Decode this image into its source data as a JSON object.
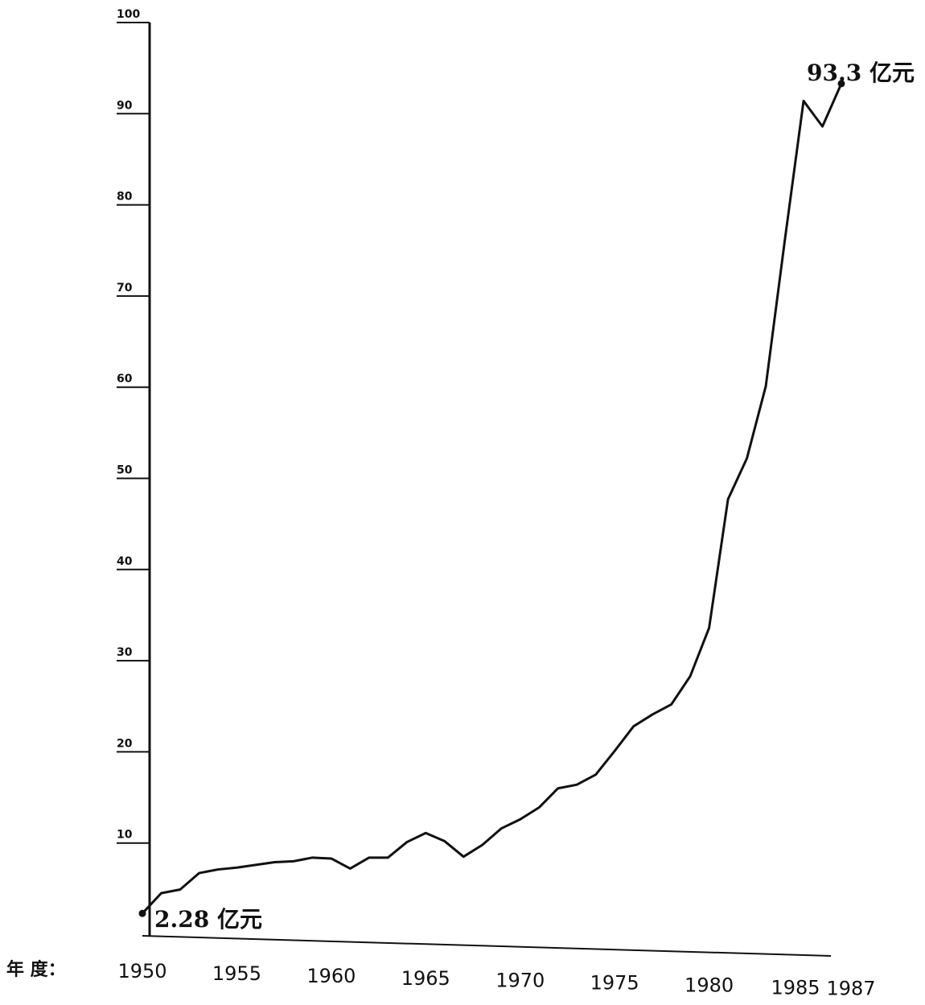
{
  "chart_data": {
    "type": "line",
    "x": [
      1950,
      1951,
      1952,
      1953,
      1954,
      1955,
      1956,
      1957,
      1958,
      1959,
      1960,
      1961,
      1962,
      1963,
      1964,
      1965,
      1966,
      1967,
      1968,
      1969,
      1970,
      1971,
      1972,
      1973,
      1974,
      1975,
      1976,
      1977,
      1978,
      1979,
      1980,
      1981,
      1982,
      1983,
      1984,
      1985,
      1986,
      1987
    ],
    "values": [
      2.28,
      4.5,
      4.9,
      6.7,
      7.1,
      7.3,
      7.6,
      7.9,
      8.0,
      8.4,
      8.3,
      7.2,
      8.4,
      8.4,
      10.1,
      11.1,
      10.2,
      8.5,
      9.8,
      11.6,
      12.6,
      13.9,
      16.0,
      16.4,
      17.5,
      20.1,
      22.8,
      24.1,
      25.2,
      28.3,
      33.6,
      47.7,
      52.2,
      60.1,
      76.0,
      91.4,
      88.6,
      93.3
    ],
    "color": "#111111",
    "xlim": [
      1950,
      1987
    ],
    "xticks": [
      1950,
      1955,
      1960,
      1965,
      1970,
      1975,
      1980,
      1985,
      1987
    ],
    "ylim": [
      0,
      100
    ],
    "yticks": [
      10,
      20,
      30,
      40,
      50,
      60,
      70,
      80,
      90,
      100
    ],
    "x_label": "年 度：",
    "annotations": [
      "2.28 亿元",
      "93.3 亿元"
    ]
  }
}
